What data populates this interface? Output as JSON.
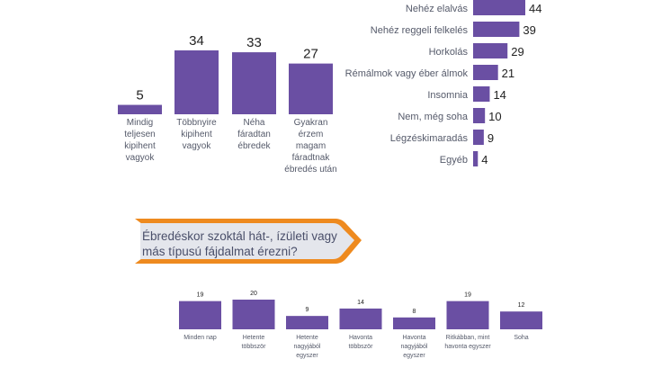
{
  "colors": {
    "bar": "#6a4fa3",
    "banner_orange": "#ee8a1f",
    "banner_fill": "#e4e6ec"
  },
  "question": "Ébredéskor szoktál hát-, ízületi vagy más típusú fájdalmat érezni?",
  "chart_data": [
    {
      "type": "bar",
      "categories": [
        [
          "Mindig",
          "teljesen",
          "kipihent",
          "vagyok"
        ],
        [
          "Többnyire",
          "kipihent",
          "vagyok"
        ],
        [
          "Néha",
          "fáradtan",
          "ébredek"
        ],
        [
          "Gyakran",
          "érzem",
          "magam",
          "fáradtnak",
          "ébredés után"
        ]
      ],
      "values": [
        5,
        34,
        33,
        27
      ],
      "ylim": [
        0,
        34
      ]
    },
    {
      "type": "bar",
      "orientation": "horizontal",
      "categories": [
        "Nehéz elalvás",
        "Nehéz reggeli felkelés",
        "Horkolás",
        "Rémálmok vagy éber álmok",
        "Insomnia",
        "Nem, még soha",
        "Légzéskimaradás",
        "Egyéb"
      ],
      "values": [
        44,
        39,
        29,
        21,
        14,
        10,
        9,
        4
      ],
      "xlim": [
        0,
        44
      ]
    },
    {
      "type": "bar",
      "categories": [
        [
          "Minden nap"
        ],
        [
          "Hetente",
          "többször"
        ],
        [
          "Hetente",
          "nagyjából",
          "egyszer"
        ],
        [
          "Havonta",
          "többször"
        ],
        [
          "Havonta",
          "nagyjából",
          "egyszer"
        ],
        [
          "Ritkábban, mint",
          "havonta egyszer"
        ],
        [
          "Soha"
        ]
      ],
      "values": [
        19,
        20,
        9,
        14,
        8,
        19,
        12
      ],
      "ylim": [
        0,
        20
      ]
    }
  ]
}
